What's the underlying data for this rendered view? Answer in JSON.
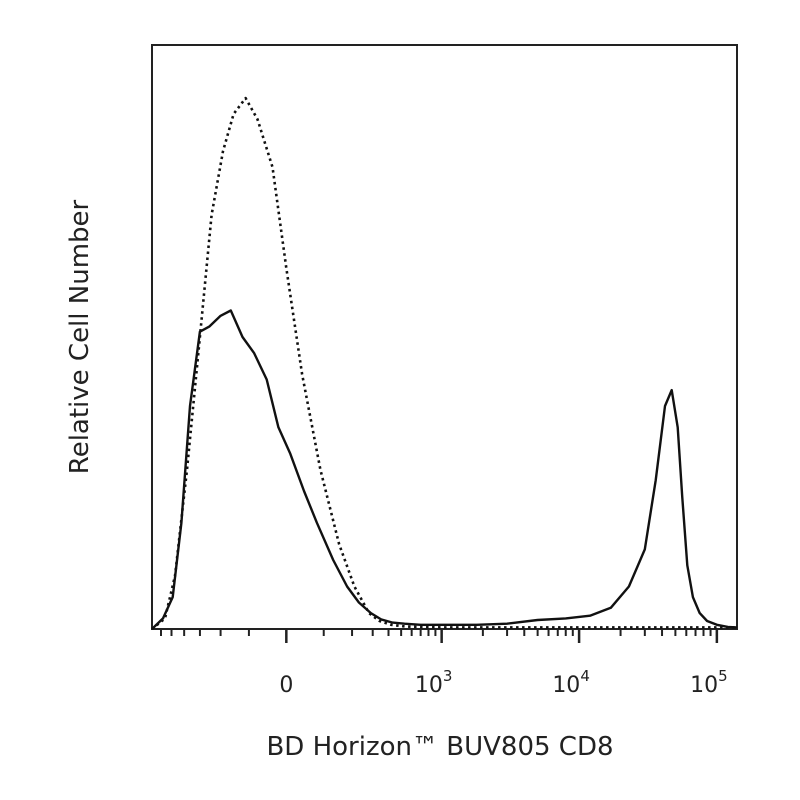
{
  "chart_data": {
    "type": "line",
    "title": "",
    "xlabel": "BD Horizon™ BUV805 CD8",
    "ylabel": "Relative Cell Number",
    "x_scale": "biexponential",
    "xlim": [
      -700,
      140000
    ],
    "ylim": [
      0,
      1.1
    ],
    "grid": false,
    "legend": "none",
    "x_ticks": [
      {
        "value": 0,
        "base": "0",
        "exp": ""
      },
      {
        "value": 1000,
        "base": "10",
        "exp": "3"
      },
      {
        "value": 10000,
        "base": "10",
        "exp": "4"
      },
      {
        "value": 100000,
        "base": "10",
        "exp": "5"
      }
    ],
    "series": [
      {
        "style": "dotted",
        "x": [
          -700,
          -560,
          -470,
          -380,
          -300,
          -240,
          -190,
          -150,
          -110,
          -75,
          -35,
          0,
          40,
          90,
          150,
          210,
          280,
          340,
          420,
          520,
          640,
          1000,
          3000,
          10000,
          30000,
          60000,
          100000,
          140000
        ],
        "y": [
          0.0,
          0.02,
          0.1,
          0.3,
          0.55,
          0.78,
          0.9,
          0.97,
          1.0,
          0.96,
          0.87,
          0.68,
          0.48,
          0.3,
          0.16,
          0.08,
          0.03,
          0.015,
          0.008,
          0.005,
          0.004,
          0.003,
          0.003,
          0.003,
          0.003,
          0.003,
          0.003,
          0.003
        ]
      },
      {
        "style": "solid",
        "x": [
          -700,
          -580,
          -490,
          -420,
          -360,
          -300,
          -250,
          -200,
          -160,
          -120,
          -85,
          -50,
          -20,
          10,
          45,
          80,
          130,
          180,
          230,
          290,
          350,
          430,
          530,
          700,
          1000,
          1800,
          3000,
          5000,
          8000,
          12000,
          17000,
          23000,
          30000,
          36000,
          42000,
          47000,
          52000,
          56000,
          61000,
          67000,
          75000,
          85000,
          100000,
          120000,
          140000
        ],
        "y": [
          0.0,
          0.02,
          0.06,
          0.2,
          0.42,
          0.56,
          0.57,
          0.59,
          0.6,
          0.55,
          0.52,
          0.47,
          0.38,
          0.33,
          0.26,
          0.2,
          0.13,
          0.08,
          0.05,
          0.03,
          0.018,
          0.012,
          0.01,
          0.008,
          0.008,
          0.008,
          0.01,
          0.017,
          0.02,
          0.025,
          0.04,
          0.08,
          0.15,
          0.28,
          0.42,
          0.45,
          0.38,
          0.25,
          0.12,
          0.06,
          0.03,
          0.015,
          0.008,
          0.004,
          0.003
        ]
      }
    ]
  }
}
